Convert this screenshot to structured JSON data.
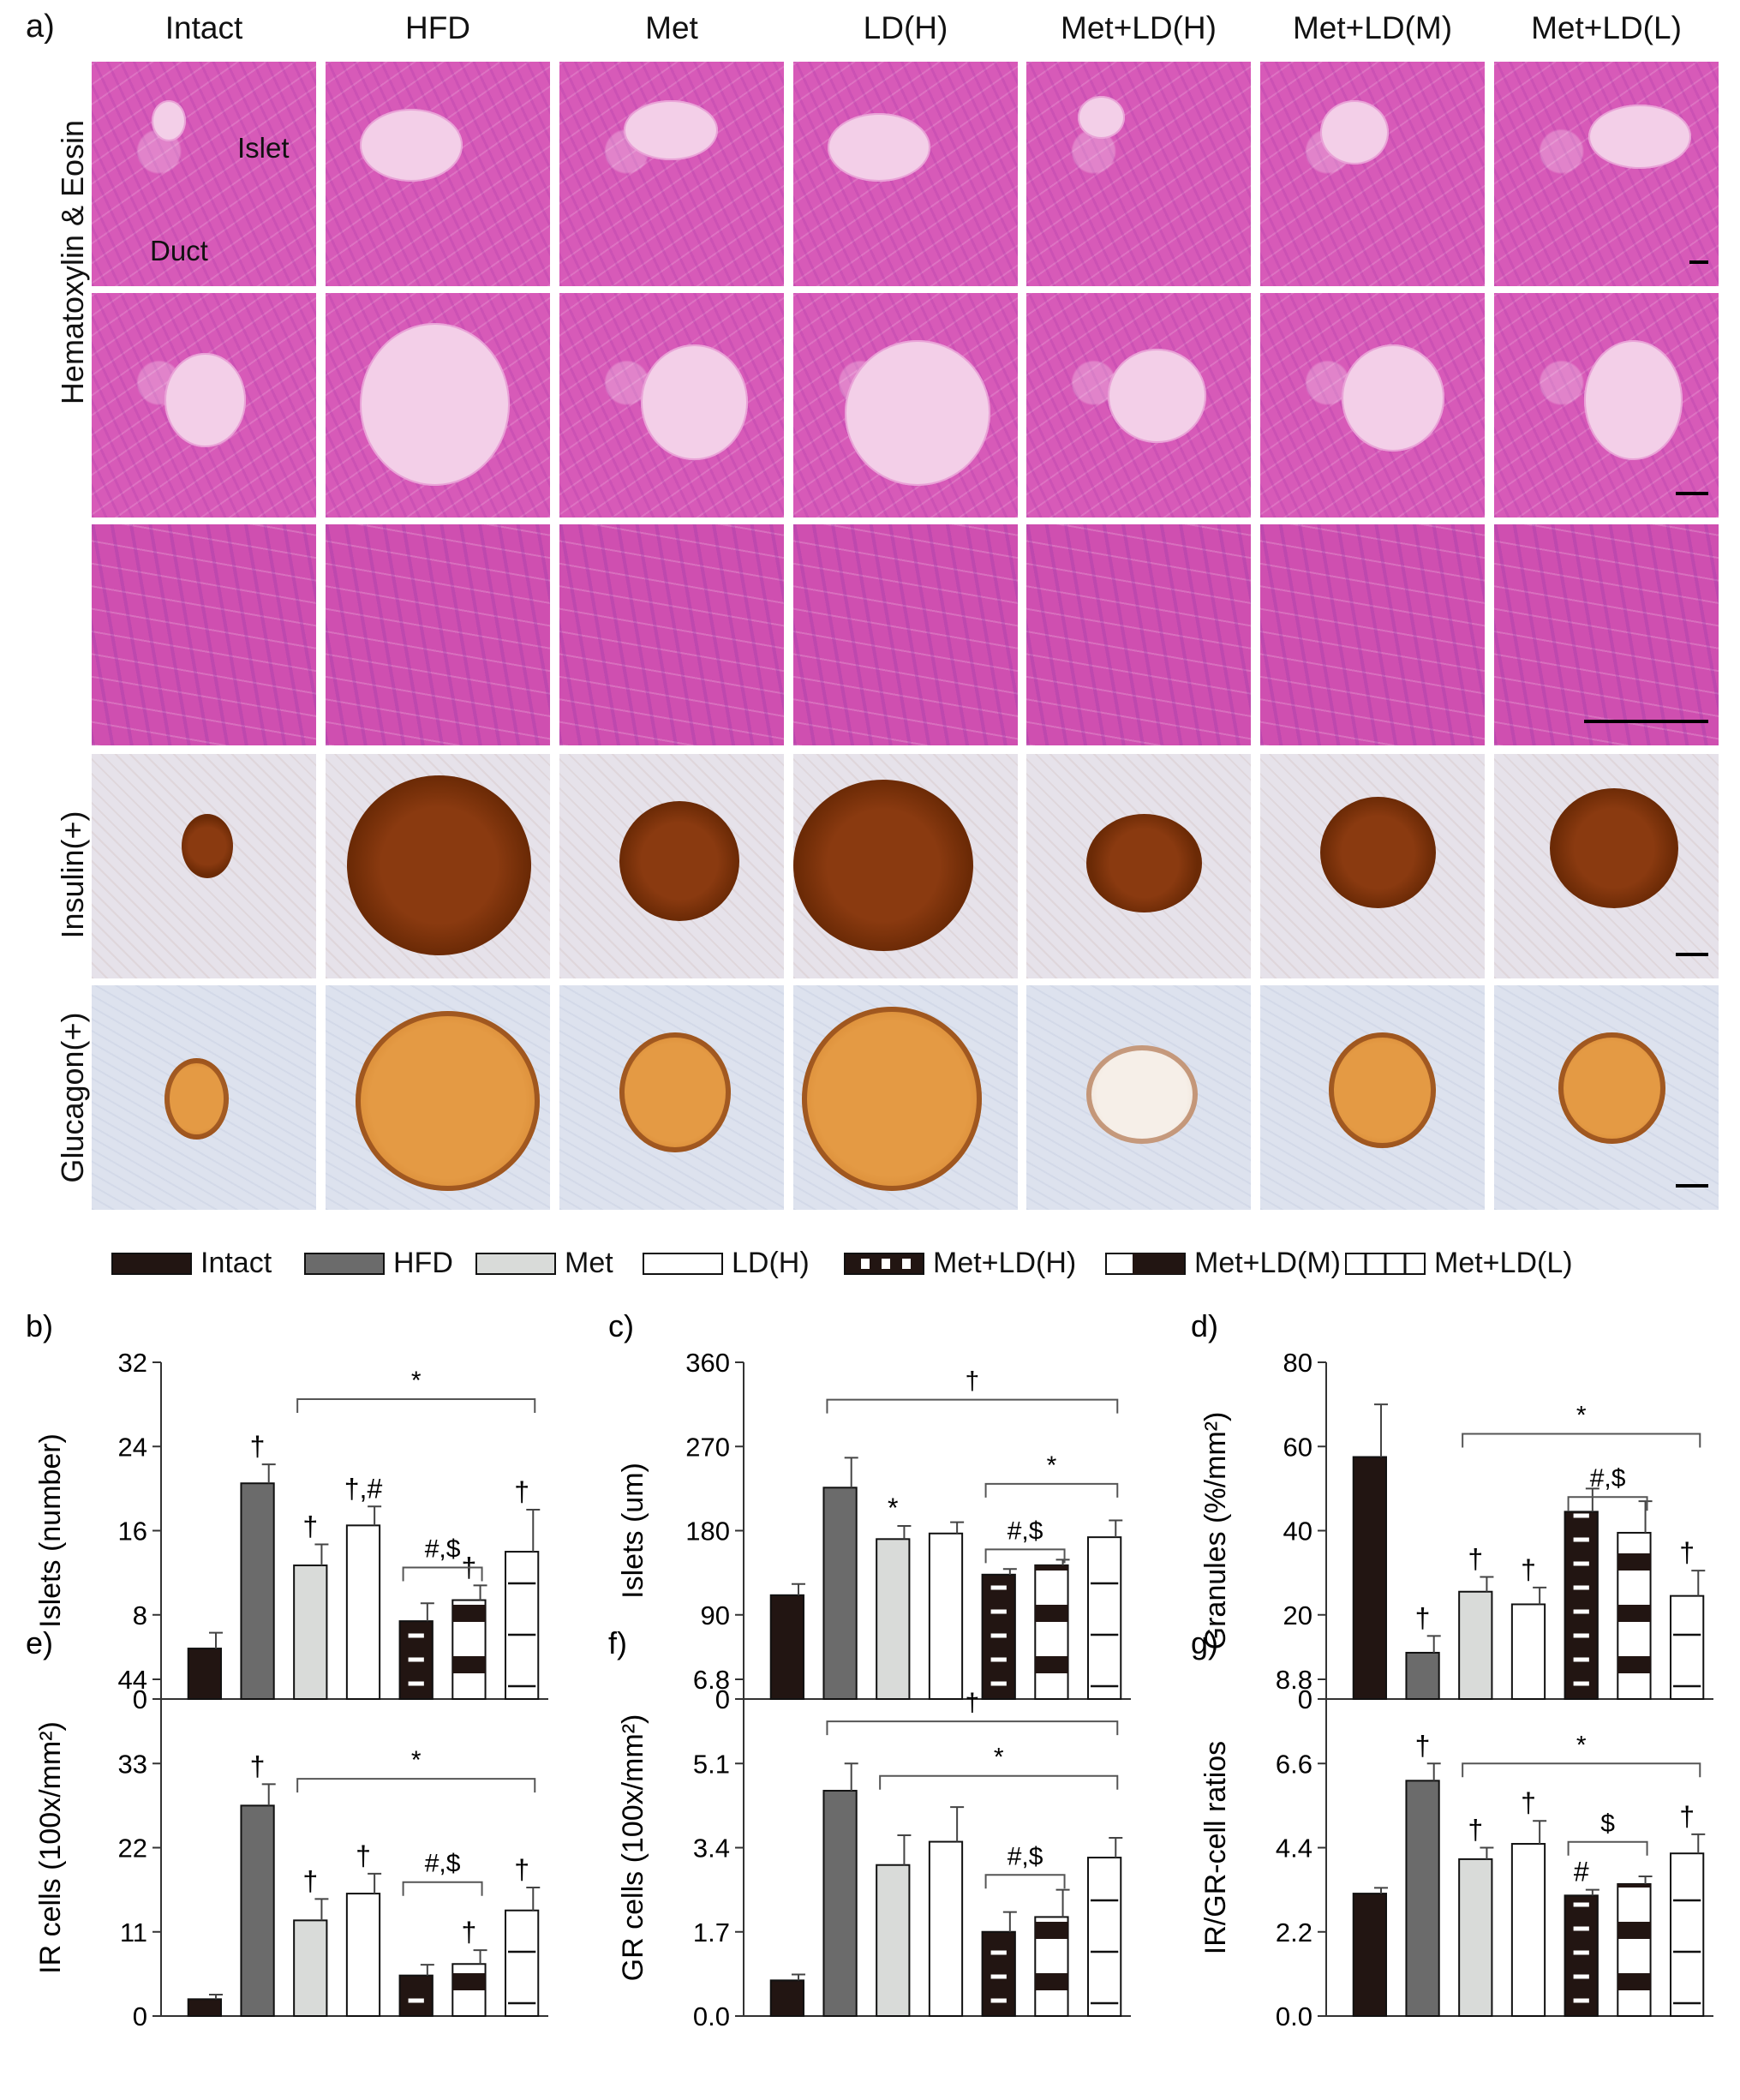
{
  "figure": {
    "panel_a_letter": "a)",
    "columns": [
      "Intact",
      "HFD",
      "Met",
      "LD(H)",
      "Met+LD(H)",
      "Met+LD(M)",
      "Met+LD(L)"
    ],
    "row_labels": {
      "he": "Hematoxylin & Eosin",
      "insulin": "Insulin(+)",
      "glucagon": "Glucagon(+)"
    },
    "annotations": {
      "islet": "Islet",
      "duct": "Duct"
    }
  },
  "legend": {
    "items": [
      {
        "label": "Intact",
        "style": "solid-dark"
      },
      {
        "label": "HFD",
        "style": "solid-gray"
      },
      {
        "label": "Met",
        "style": "solid-light"
      },
      {
        "label": "LD(H)",
        "style": "white"
      },
      {
        "label": "Met+LD(H)",
        "style": "dark-white-stripes"
      },
      {
        "label": "Met+LD(M)",
        "style": "white-dark-block"
      },
      {
        "label": "Met+LD(L)",
        "style": "white-lines"
      }
    ]
  },
  "colors": {
    "Intact": "#221512",
    "HFD": "#6b6b6b",
    "Met": "#d9dbd9",
    "white": "#ffffff",
    "dark": "#221512"
  },
  "chart_data": [
    {
      "id": "b",
      "letter": "b)",
      "type": "bar",
      "ylabel": "Islets (number)",
      "yticks": [
        "0",
        "8",
        "16",
        "24",
        "32"
      ],
      "ylim": [
        0,
        32
      ],
      "categories": [
        "Intact",
        "HFD",
        "Met",
        "LD(H)",
        "Met+LD(H)",
        "Met+LD(M)",
        "Met+LD(L)"
      ],
      "values": [
        4.8,
        20.5,
        12.7,
        16.5,
        7.4,
        9.4,
        14.0
      ],
      "errors": [
        1.5,
        1.8,
        2.0,
        1.8,
        1.7,
        1.4,
        4.0
      ],
      "marks": [
        "",
        "†",
        "†",
        "†,#",
        "",
        "†",
        "†"
      ],
      "brackets": [
        {
          "from": 2,
          "to": 6,
          "label": "*",
          "level": 28.5
        },
        {
          "from": 4,
          "to": 5,
          "label": "#,$",
          "level": 12.5
        }
      ]
    },
    {
      "id": "c",
      "letter": "c)",
      "type": "bar",
      "ylabel": "Islets (um)",
      "yticks": [
        "0",
        "90",
        "180",
        "270",
        "360"
      ],
      "ylim": [
        0,
        360
      ],
      "categories": [
        "Intact",
        "HFD",
        "Met",
        "LD(H)",
        "Met+LD(H)",
        "Met+LD(M)",
        "Met+LD(L)"
      ],
      "values": [
        111,
        226,
        171,
        177,
        133,
        143,
        173
      ],
      "errors": [
        12,
        32,
        14,
        12,
        6,
        6,
        18
      ],
      "marks": [
        "",
        "",
        "*",
        "",
        "",
        "",
        ""
      ],
      "brackets": [
        {
          "from": 1,
          "to": 6,
          "label": "†",
          "level": 320
        },
        {
          "from": 4,
          "to": 6,
          "label": "*",
          "level": 230
        },
        {
          "from": 4,
          "to": 5,
          "label": "#,$",
          "level": 160
        }
      ]
    },
    {
      "id": "d",
      "letter": "d)",
      "type": "bar",
      "ylabel": "Granules (%/mm²)",
      "yticks": [
        "0",
        "20",
        "40",
        "60",
        "80"
      ],
      "ylim": [
        0,
        80
      ],
      "categories": [
        "Intact",
        "HFD",
        "Met",
        "LD(H)",
        "Met+LD(H)",
        "Met+LD(M)",
        "Met+LD(L)"
      ],
      "values": [
        57.5,
        11.0,
        25.5,
        22.5,
        44.5,
        39.5,
        24.5
      ],
      "errors": [
        12.5,
        4.0,
        3.5,
        4.0,
        5.5,
        7.5,
        6.0
      ],
      "marks": [
        "",
        "†",
        "†",
        "†",
        "",
        "",
        "†"
      ],
      "brackets": [
        {
          "from": 2,
          "to": 6,
          "label": "*",
          "level": 63
        },
        {
          "from": 4,
          "to": 5,
          "label": "#,$",
          "level": 48
        }
      ]
    },
    {
      "id": "e",
      "letter": "e)",
      "type": "bar",
      "ylabel": "IR cells (100x/mm²)",
      "yticks": [
        "0",
        "11",
        "22",
        "33",
        "44"
      ],
      "ylim": [
        0,
        44
      ],
      "categories": [
        "Intact",
        "HFD",
        "Met",
        "LD(H)",
        "Met+LD(H)",
        "Met+LD(M)",
        "Met+LD(L)"
      ],
      "values": [
        2.2,
        27.5,
        12.5,
        16.0,
        5.3,
        6.8,
        13.8
      ],
      "errors": [
        0.6,
        2.8,
        2.8,
        2.6,
        1.4,
        1.8,
        3.0
      ],
      "marks": [
        "",
        "†",
        "†",
        "†",
        "",
        "†",
        "†"
      ],
      "brackets": [
        {
          "from": 2,
          "to": 6,
          "label": "*",
          "level": 31
        },
        {
          "from": 4,
          "to": 5,
          "label": "#,$",
          "level": 17.5
        }
      ]
    },
    {
      "id": "f",
      "letter": "f)",
      "type": "bar",
      "ylabel": "GR cells (100x/mm²)",
      "yticks": [
        "0.0",
        "1.7",
        "3.4",
        "5.1",
        "6.8"
      ],
      "ylim": [
        0,
        6.8
      ],
      "categories": [
        "Intact",
        "HFD",
        "Met",
        "LD(H)",
        "Met+LD(H)",
        "Met+LD(M)",
        "Met+LD(L)"
      ],
      "values": [
        0.72,
        4.55,
        3.05,
        3.52,
        1.7,
        2.0,
        3.2
      ],
      "errors": [
        0.12,
        0.55,
        0.6,
        0.7,
        0.4,
        0.55,
        0.4
      ],
      "marks": [
        "",
        "",
        "",
        "",
        "",
        "",
        ""
      ],
      "brackets": [
        {
          "from": 1,
          "to": 6,
          "label": "†",
          "level": 5.95
        },
        {
          "from": 2,
          "to": 6,
          "label": "*",
          "level": 4.85
        },
        {
          "from": 4,
          "to": 5,
          "label": "#,$",
          "level": 2.85
        }
      ]
    },
    {
      "id": "g",
      "letter": "g)",
      "type": "bar",
      "ylabel": "IR/GR-cell ratios",
      "yticks": [
        "0.0",
        "2.2",
        "4.4",
        "6.6",
        "8.8"
      ],
      "ylim": [
        0,
        8.8
      ],
      "categories": [
        "Intact",
        "HFD",
        "Met",
        "LD(H)",
        "Met+LD(H)",
        "Met+LD(M)",
        "Met+LD(L)"
      ],
      "values": [
        3.2,
        6.15,
        4.1,
        4.5,
        3.15,
        3.45,
        4.25
      ],
      "errors": [
        0.15,
        0.45,
        0.3,
        0.6,
        0.15,
        0.2,
        0.5
      ],
      "marks": [
        "",
        "†",
        "†",
        "†",
        "#",
        "",
        "†"
      ],
      "brackets": [
        {
          "from": 2,
          "to": 6,
          "label": "*",
          "level": 6.6
        },
        {
          "from": 4,
          "to": 5,
          "label": "$",
          "level": 4.55
        }
      ]
    }
  ]
}
